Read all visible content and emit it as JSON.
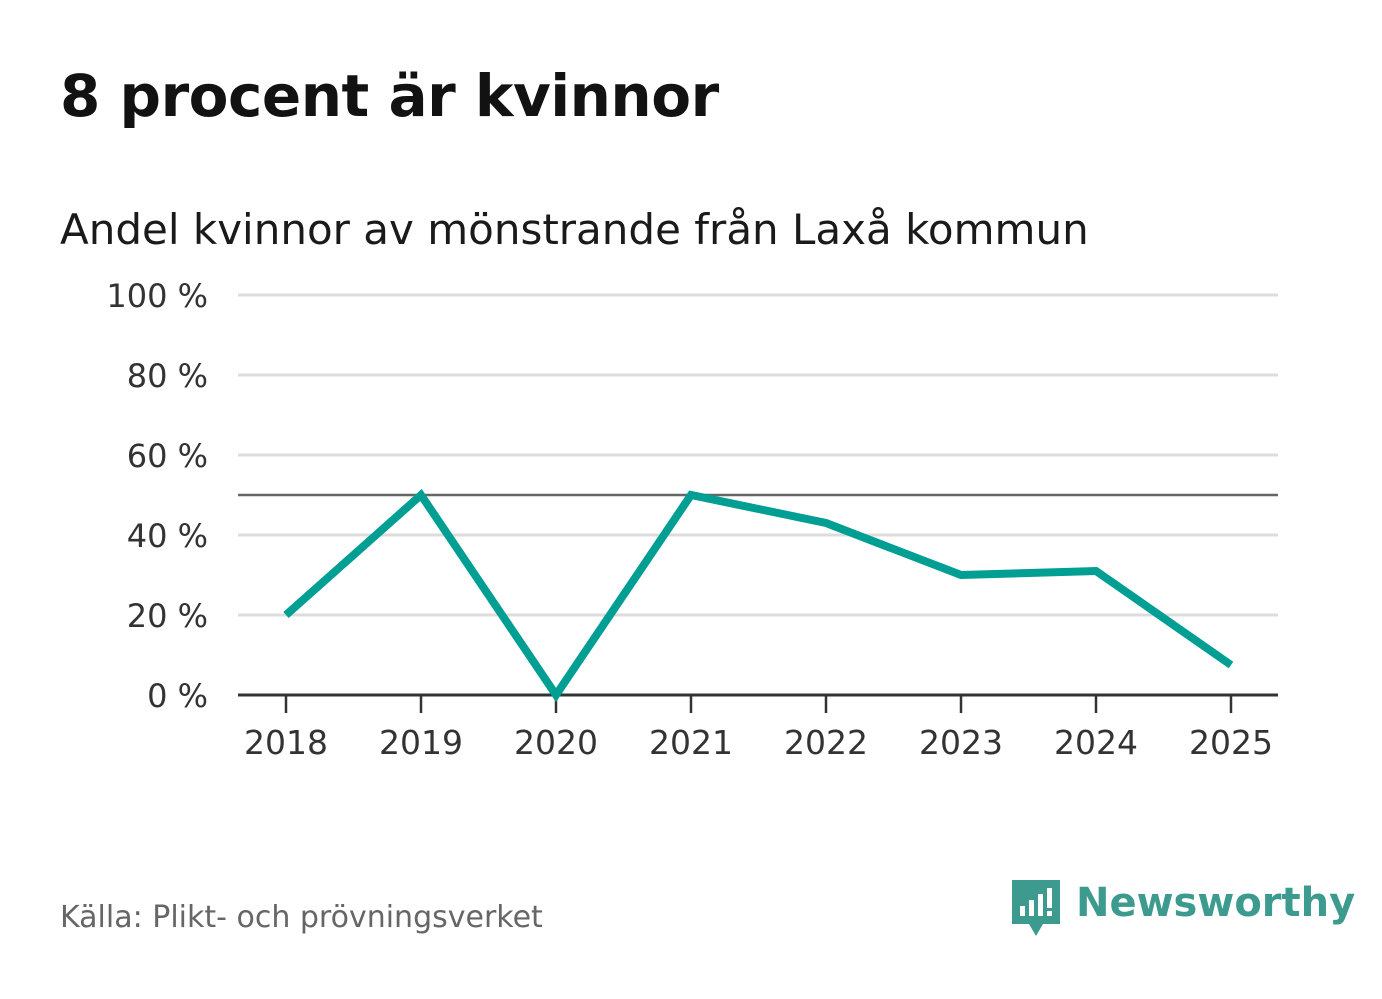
{
  "headline": "8 procent är kvinnor",
  "footer": {
    "source": "Källa: Plikt- och prövningsverket",
    "brand": "Newsworthy"
  },
  "colors": {
    "line": "#009e93",
    "grid": "#dcdcdc",
    "reference": "#666666",
    "axis": "#333333",
    "brand": "#3c9a8e"
  },
  "chart_data": {
    "type": "line",
    "title": "Andel kvinnor av mönstrande från Laxå kommun",
    "xlabel": "",
    "ylabel": "",
    "categories": [
      "2018",
      "2019",
      "2020",
      "2021",
      "2022",
      "2023",
      "2024",
      "2025"
    ],
    "series": [
      {
        "name": "Andel kvinnor",
        "values": [
          20,
          50,
          0,
          50,
          43,
          30,
          31,
          7.5
        ]
      }
    ],
    "ylim": [
      0,
      100
    ],
    "yticks": [
      0,
      20,
      40,
      60,
      80,
      100
    ],
    "ytick_labels": [
      "0 %",
      "20 %",
      "40 %",
      "60 %",
      "80 %",
      "100 %"
    ],
    "reference_line": 50,
    "grid": true,
    "legend": "none"
  }
}
